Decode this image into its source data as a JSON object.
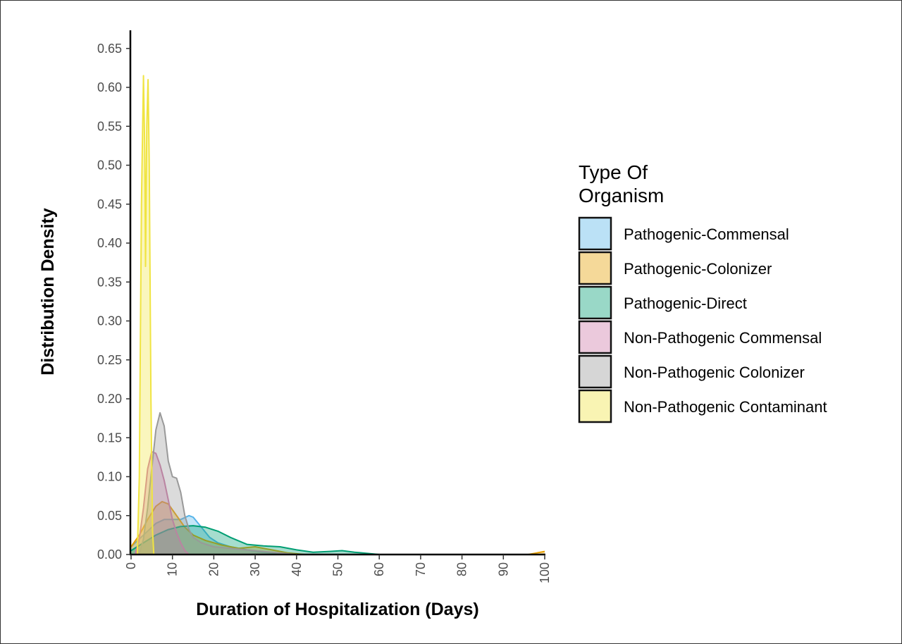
{
  "chart_data": {
    "type": "area",
    "title": "",
    "xlabel": "Duration of Hospitalization (Days)",
    "ylabel": "Distribution Density",
    "xlim": [
      0,
      100
    ],
    "ylim": [
      0,
      0.67
    ],
    "x_ticks": [
      "0",
      "10",
      "20",
      "30",
      "40",
      "50",
      "60",
      "70",
      "80",
      "90",
      "100"
    ],
    "y_ticks": [
      "0.00",
      "0.05",
      "0.10",
      "0.15",
      "0.20",
      "0.25",
      "0.30",
      "0.35",
      "0.40",
      "0.45",
      "0.50",
      "0.55",
      "0.60",
      "0.65"
    ],
    "grid": false,
    "legend": {
      "title_line1": "Type Of",
      "title_line2": "Organism",
      "position": "right"
    },
    "series": [
      {
        "name": "Pathogenic-Commensal",
        "fill": "#56B4E9",
        "stroke": "#56B4E9",
        "points": [
          [
            0,
            0.01
          ],
          [
            2,
            0.02
          ],
          [
            4,
            0.03
          ],
          [
            6,
            0.04
          ],
          [
            8,
            0.045
          ],
          [
            10,
            0.045
          ],
          [
            12,
            0.045
          ],
          [
            14,
            0.05
          ],
          [
            15,
            0.048
          ],
          [
            17,
            0.035
          ],
          [
            19,
            0.022
          ],
          [
            21,
            0.015
          ],
          [
            24,
            0.01
          ],
          [
            28,
            0.006
          ],
          [
            32,
            0.003
          ],
          [
            36,
            0.001
          ],
          [
            40,
            0.0
          ],
          [
            100,
            0.0
          ]
        ]
      },
      {
        "name": "Pathogenic-Colonizer",
        "fill": "#E69F00",
        "stroke": "#E69F00",
        "points": [
          [
            0,
            0.01
          ],
          [
            2,
            0.025
          ],
          [
            4,
            0.045
          ],
          [
            6,
            0.062
          ],
          [
            7.5,
            0.068
          ],
          [
            9,
            0.065
          ],
          [
            11,
            0.05
          ],
          [
            13,
            0.035
          ],
          [
            15,
            0.025
          ],
          [
            18,
            0.018
          ],
          [
            22,
            0.012
          ],
          [
            26,
            0.008
          ],
          [
            30,
            0.01
          ],
          [
            34,
            0.006
          ],
          [
            38,
            0.002
          ],
          [
            42,
            0.0
          ],
          [
            96,
            0.0
          ],
          [
            98,
            0.002
          ],
          [
            100,
            0.004
          ]
        ]
      },
      {
        "name": "Pathogenic-Direct",
        "fill": "#009E73",
        "stroke": "#009E73",
        "points": [
          [
            0,
            0.005
          ],
          [
            3,
            0.015
          ],
          [
            6,
            0.025
          ],
          [
            9,
            0.032
          ],
          [
            12,
            0.036
          ],
          [
            15,
            0.037
          ],
          [
            18,
            0.035
          ],
          [
            21,
            0.03
          ],
          [
            24,
            0.022
          ],
          [
            28,
            0.013
          ],
          [
            32,
            0.011
          ],
          [
            36,
            0.01
          ],
          [
            40,
            0.006
          ],
          [
            44,
            0.003
          ],
          [
            48,
            0.004
          ],
          [
            51,
            0.005
          ],
          [
            54,
            0.003
          ],
          [
            58,
            0.001
          ],
          [
            60,
            0.0
          ],
          [
            100,
            0.0
          ]
        ]
      },
      {
        "name": "Non-Pathogenic Commensal",
        "fill": "#CC79A7",
        "stroke": "#CC79A7",
        "points": [
          [
            1,
            0.0
          ],
          [
            2,
            0.02
          ],
          [
            3,
            0.06
          ],
          [
            4,
            0.11
          ],
          [
            5,
            0.132
          ],
          [
            6,
            0.13
          ],
          [
            7,
            0.115
          ],
          [
            8,
            0.095
          ],
          [
            9,
            0.07
          ],
          [
            10,
            0.045
          ],
          [
            11,
            0.028
          ],
          [
            12,
            0.015
          ],
          [
            13,
            0.005
          ],
          [
            14,
            0.0
          ],
          [
            100,
            0.0
          ]
        ]
      },
      {
        "name": "Non-Pathogenic Colonizer",
        "fill": "#999999",
        "stroke": "#999999",
        "points": [
          [
            2,
            0.0
          ],
          [
            3,
            0.02
          ],
          [
            4,
            0.06
          ],
          [
            5,
            0.11
          ],
          [
            6,
            0.16
          ],
          [
            7,
            0.182
          ],
          [
            8,
            0.165
          ],
          [
            9,
            0.12
          ],
          [
            10,
            0.1
          ],
          [
            11,
            0.098
          ],
          [
            12,
            0.08
          ],
          [
            13,
            0.05
          ],
          [
            14,
            0.032
          ],
          [
            15,
            0.022
          ],
          [
            17,
            0.015
          ],
          [
            20,
            0.01
          ],
          [
            24,
            0.008
          ],
          [
            28,
            0.006
          ],
          [
            32,
            0.004
          ],
          [
            36,
            0.002
          ],
          [
            40,
            0.0
          ],
          [
            100,
            0.0
          ]
        ]
      },
      {
        "name": "Non-Pathogenic Contaminant",
        "fill": "#F0E442",
        "stroke": "#F0E442",
        "points": [
          [
            1.5,
            0.0
          ],
          [
            2,
            0.1
          ],
          [
            2.5,
            0.45
          ],
          [
            3,
            0.615
          ],
          [
            3.3,
            0.52
          ],
          [
            3.5,
            0.37
          ],
          [
            3.8,
            0.55
          ],
          [
            4.1,
            0.61
          ],
          [
            4.4,
            0.5
          ],
          [
            4.8,
            0.2
          ],
          [
            5.2,
            0.03
          ],
          [
            5.5,
            0.0
          ],
          [
            100,
            0.0
          ]
        ]
      }
    ]
  }
}
